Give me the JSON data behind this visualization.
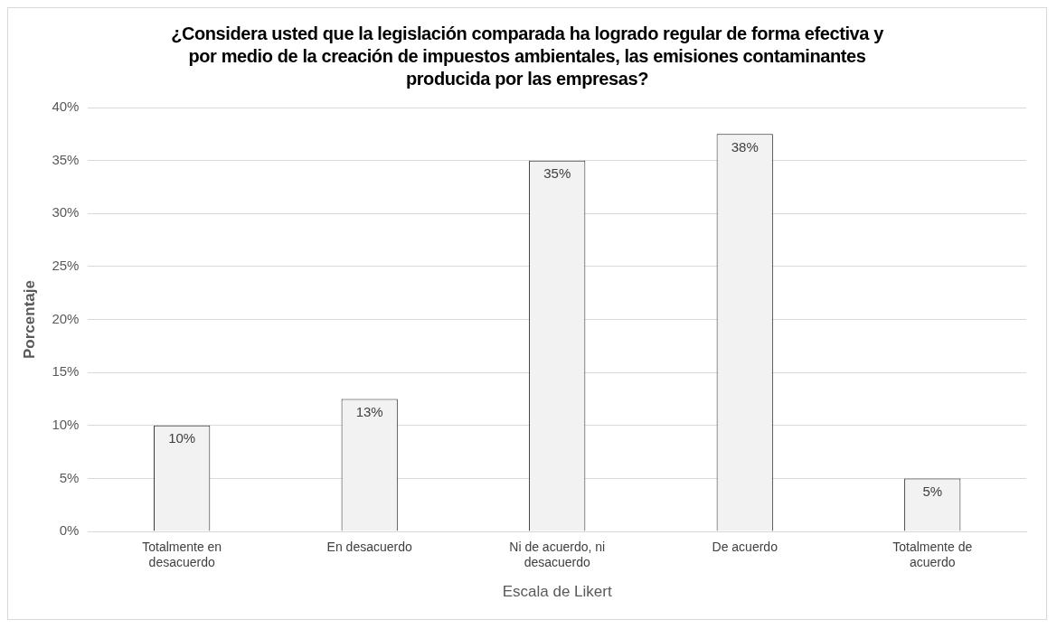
{
  "chart_data": {
    "type": "bar",
    "title": "¿Considera usted que la legislación comparada ha logrado regular de forma efectiva y por medio de la creación de impuestos ambientales, las emisiones contaminantes producida por las empresas?",
    "xlabel": "Escala de Likert",
    "ylabel": "Porcentaje",
    "categories": [
      "Totalmente en desacuerdo",
      "En desacuerdo",
      "Ni de acuerdo, ni desacuerdo",
      "De acuerdo",
      "Totalmente de acuerdo"
    ],
    "values": [
      10,
      12.5,
      35,
      37.5,
      5
    ],
    "value_labels": [
      "10%",
      "13%",
      "35%",
      "38%",
      "5%"
    ],
    "color": "#f2f2f2",
    "ylim": [
      0,
      40
    ],
    "yticks": [
      {
        "value": 0,
        "label": "0%"
      },
      {
        "value": 5,
        "label": "5%"
      },
      {
        "value": 10,
        "label": "10%"
      },
      {
        "value": 15,
        "label": "15%"
      },
      {
        "value": 20,
        "label": "20%"
      },
      {
        "value": 25,
        "label": "25%"
      },
      {
        "value": 30,
        "label": "30%"
      },
      {
        "value": 35,
        "label": "35%"
      },
      {
        "value": 40,
        "label": "40%"
      }
    ],
    "grid": "y",
    "legend": false
  }
}
